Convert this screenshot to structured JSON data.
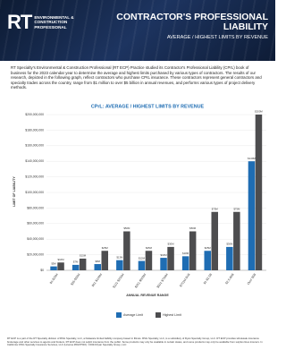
{
  "header": {
    "logo": {
      "mark": "RT",
      "text": "ENVIRONMENTAL & CONSTRUCTION PROFESSIONAL"
    },
    "title": "CONTRACTOR'S PROFESSIONAL LIABILITY",
    "subtitle": "AVERAGE / HIGHEST LIMITS BY REVENUE"
  },
  "intro": "RT Specialty's Environmental & Construction Professional (RT ECP) Practice studied its Contractor's Professional Liability (CPrL) book of business for the 2023 calendar year to determine the average and highest limits purchased by various types of contractors. The results of our research, depicted in the following graph, reflect contractors who purchase CPrL insurance. These contractors represent general contractors and specialty trades across the country, range from $1 million to over $5 billion in annual revenues, and performs various types of project delivery methods.",
  "chart_data": {
    "type": "bar",
    "title": "CPrL: AVERAGE / HIGHEST LIMITS BY REVENUE",
    "x_label": "ANNUAL REVENUE RANGE",
    "y_label": "LIMIT OF LIABILITY",
    "categories": [
      "$1-$25M",
      "$26-$50M",
      "$51-$100M",
      "$101-$250M",
      "$251-$500M",
      "$501-$750M",
      "$751M-$1B",
      "$1-$2.5B",
      "$2.5-$5B",
      "Over $5B"
    ],
    "series": [
      {
        "name": "Average Limit",
        "color": "#1f6db3",
        "values": [
          5000000,
          7000000,
          8000000,
          13000000,
          12000000,
          16000000,
          18000000,
          25000000,
          30000000,
          140000000
        ],
        "value_labels": [
          "$5M",
          "$7M",
          "$8M",
          "$13M",
          "$12M",
          "$16M",
          "$18M",
          "$25M",
          "$30M",
          "$140M"
        ]
      },
      {
        "name": "Highest Limit",
        "color": "#4d4d4f",
        "values": [
          10000000,
          15000000,
          25000000,
          50000000,
          25000000,
          30000000,
          50000000,
          75000000,
          75000000,
          200000000
        ],
        "value_labels": [
          "$10M",
          "$15M",
          "$25M",
          "$50M",
          "$25M",
          "$30M",
          "$50M",
          "$75M",
          "$75M",
          "$200M"
        ]
      }
    ],
    "ylim": [
      0,
      200000000
    ],
    "yticks": [
      {
        "value": 0,
        "label": "$0"
      },
      {
        "value": 20000000,
        "label": "$20,000,000"
      },
      {
        "value": 40000000,
        "label": "$40,000,000"
      },
      {
        "value": 60000000,
        "label": "$60,000,000"
      },
      {
        "value": 80000000,
        "label": "$80,000,000"
      },
      {
        "value": 100000000,
        "label": "$100,000,000"
      },
      {
        "value": 120000000,
        "label": "$120,000,000"
      },
      {
        "value": 140000000,
        "label": "$140,000,000"
      },
      {
        "value": 160000000,
        "label": "$160,000,000"
      },
      {
        "value": 180000000,
        "label": "$180,000,000"
      },
      {
        "value": 200000000,
        "label": "$200,000,000"
      }
    ],
    "grid": true,
    "legend": "bottom"
  },
  "footer": "RT ECP is a part of the RT Specialty division of RSG Specialty, LLC, a Delaware limited liability company based in Illinois. RSG Specialty, LLC, is a subsidiary of Ryan Specialty Group, LLC. RT ECP provides wholesale insurance brokerage and other services to agents and brokers. RT ECP does not solicit insurance from the public. Some products may only be available in certain states, and some products may only be available from surplus lines insurers. In California: RSG Specialty Insurance Services, LLC (License #0G97516). ©2024 Ryan Specialty Group, LLC"
}
